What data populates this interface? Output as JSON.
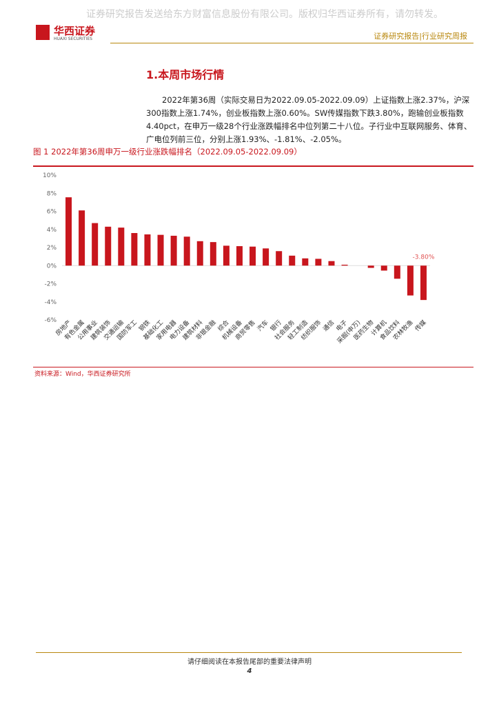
{
  "header": {
    "watermark": "证券研究报告发送给东方财富信息股份有限公司。版权归华西证券所有，请勿转发。",
    "logo_cn": "华西证券",
    "logo_en": "HUAXI SECURITIES",
    "report_type": "证券研究报告|行业研究周报"
  },
  "section_title": "1.本周市场行情",
  "paragraph": "2022年第36周（实际交易日为2022.09.05-2022.09.09）上证指数上涨2.37%，沪深300指数上涨1.74%，创业板指数上涨0.60%。SW传媒指数下跌3.80%，跑输创业板指数4.40pct，在申万一级28个行业涨跌幅排名中位列第二十八位。子行业中互联网服务、体育、广电位列前三位，分别上涨1.93%、-1.81%、-2.05%。",
  "chart_data": {
    "type": "bar",
    "title": "图 1 2022年第36周申万一级行业涨跌幅排名（2022.09.05-2022.09.09）",
    "categories": [
      "房地产",
      "有色金属",
      "公用事业",
      "建筑装饰",
      "交通运输",
      "国防军工",
      "钢铁",
      "基础化工",
      "家用电器",
      "电力设备",
      "建筑材料",
      "非银金融",
      "综合",
      "机械设备",
      "商贸零售",
      "汽车",
      "银行",
      "社会服务",
      "轻工制造",
      "纺织服饰",
      "通信",
      "电子",
      "采掘(申万)",
      "医药生物",
      "计算机",
      "食品饮料",
      "农林牧渔",
      "传媒"
    ],
    "values": [
      7.55,
      6.1,
      4.7,
      4.3,
      4.2,
      3.6,
      3.45,
      3.4,
      3.3,
      3.2,
      2.7,
      2.6,
      2.2,
      2.15,
      2.1,
      1.9,
      1.6,
      1.1,
      0.8,
      0.75,
      0.5,
      0.1,
      0.0,
      -0.25,
      -0.55,
      -1.45,
      -3.3,
      -3.8
    ],
    "value_labels": [
      null,
      null,
      null,
      null,
      null,
      null,
      null,
      null,
      null,
      null,
      null,
      null,
      null,
      null,
      null,
      null,
      null,
      null,
      null,
      null,
      null,
      null,
      null,
      null,
      null,
      null,
      null,
      "-3.80%"
    ],
    "color": "#c8161d",
    "ylim": [
      -6,
      10
    ],
    "yticks": [
      {
        "value": -6,
        "label": "-6%"
      },
      {
        "value": -4,
        "label": "-4%"
      },
      {
        "value": -2,
        "label": "-2%"
      },
      {
        "value": 0,
        "label": "0%"
      },
      {
        "value": 2,
        "label": "2%"
      },
      {
        "value": 4,
        "label": "4%"
      },
      {
        "value": 6,
        "label": "6%"
      },
      {
        "value": 8,
        "label": "8%"
      },
      {
        "value": 10,
        "label": "10%"
      }
    ],
    "source": "资料来源：Wind，华西证券研究所"
  },
  "footer": {
    "notice": "请仔细阅读在本报告尾部的重要法律声明",
    "page": "4"
  }
}
